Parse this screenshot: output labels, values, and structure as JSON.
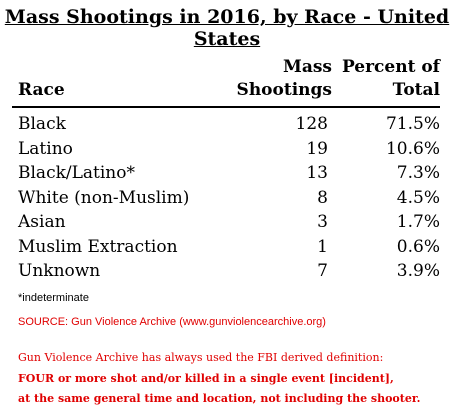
{
  "chart_data": {
    "type": "table",
    "title": "Mass Shootings in 2016, by Race - United States",
    "columns": [
      "Race",
      "Mass Shootings",
      "Percent of Total"
    ],
    "column_header_lines": {
      "race": "Race",
      "count_line1": "Mass",
      "count_line2": "Shootings",
      "pct_line1": "Percent of",
      "pct_line2": "Total"
    },
    "rows": [
      {
        "race": "Black",
        "count": 128,
        "percent": "71.5%"
      },
      {
        "race": "Latino",
        "count": 19,
        "percent": "10.6%"
      },
      {
        "race": "Black/Latino*",
        "count": 13,
        "percent": "7.3%"
      },
      {
        "race": "White (non-Muslim)",
        "count": 8,
        "percent": "4.5%"
      },
      {
        "race": "Asian",
        "count": 3,
        "percent": "1.7%"
      },
      {
        "race": "Muslim Extraction",
        "count": 1,
        "percent": "0.6%"
      },
      {
        "race": "Unknown",
        "count": 7,
        "percent": "3.9%"
      }
    ]
  },
  "footnote": "*indeterminate",
  "source": "SOURCE: Gun Violence Archive (www.gunviolencearchive.org)",
  "definition_note": {
    "line1": "Gun Violence Archive has always used the FBI derived definition:",
    "line2": "FOUR or more shot and/or killed in a single event [incident],",
    "line3": "at the same general time and location, not including the shooter."
  },
  "colors": {
    "text": "#000000",
    "note_red": "#e00000"
  }
}
